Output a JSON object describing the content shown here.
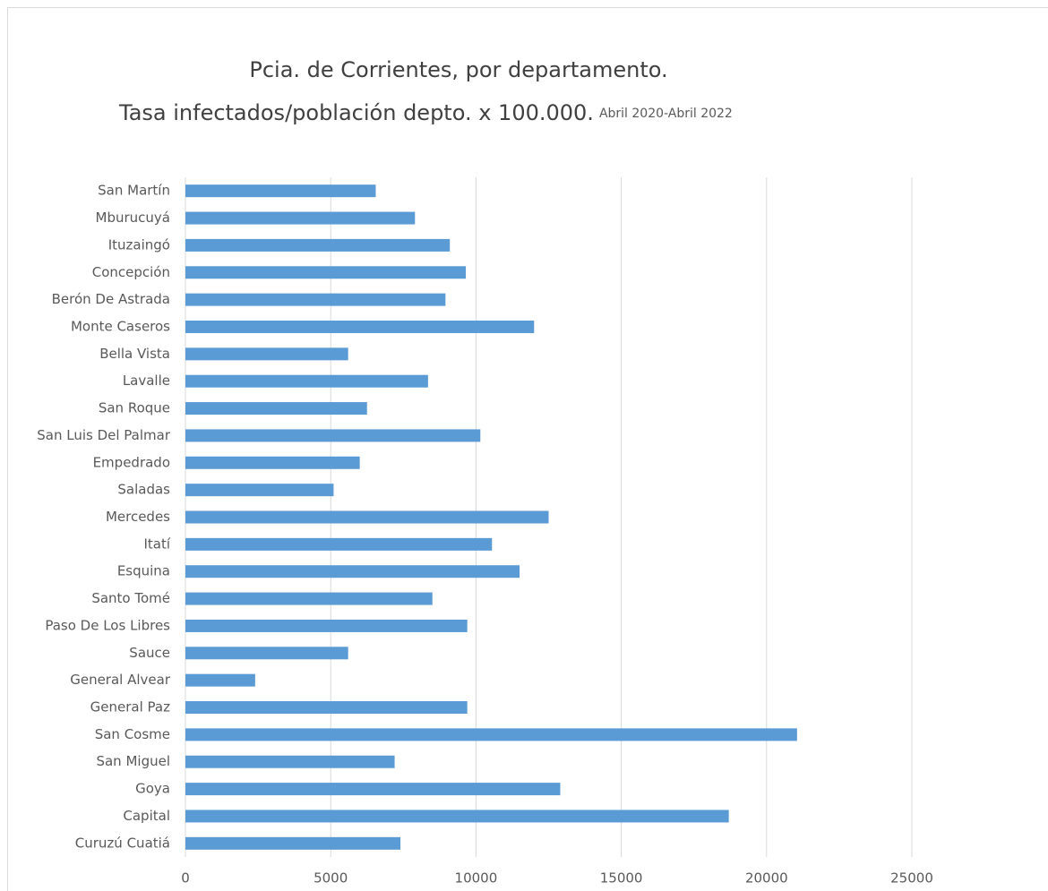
{
  "chart_data": {
    "type": "hbar",
    "title": "Pcia. de Corrientes, por departamento.",
    "title_line2": "Tasa infectados/población depto. x 100.000.",
    "subtitle": "Abril 2020-Abril 2022",
    "categories": [
      "San Martín",
      "Mburucuyá",
      "Ituzaingó",
      "Concepción",
      "Berón De Astrada",
      "Monte Caseros",
      "Bella Vista",
      "Lavalle",
      "San Roque",
      "San Luis Del Palmar",
      "Empedrado",
      "Saladas",
      "Mercedes",
      "Itatí",
      "Esquina",
      "Santo Tomé",
      "Paso De Los Libres",
      "Sauce",
      "General Alvear",
      "General Paz",
      "San Cosme",
      "San Miguel",
      "Goya",
      "Capital",
      "Curuzú Cuatiá"
    ],
    "values": [
      6550,
      7900,
      9100,
      9650,
      8950,
      12000,
      5600,
      8350,
      6250,
      10150,
      6000,
      5100,
      12500,
      10550,
      11500,
      8500,
      9700,
      5600,
      2400,
      9700,
      21050,
      7200,
      12900,
      18700,
      7400
    ],
    "color": "#5b9bd5",
    "xlim": [
      0,
      25000
    ],
    "xticks": [
      0,
      5000,
      10000,
      15000,
      20000,
      25000
    ],
    "grid": true
  }
}
